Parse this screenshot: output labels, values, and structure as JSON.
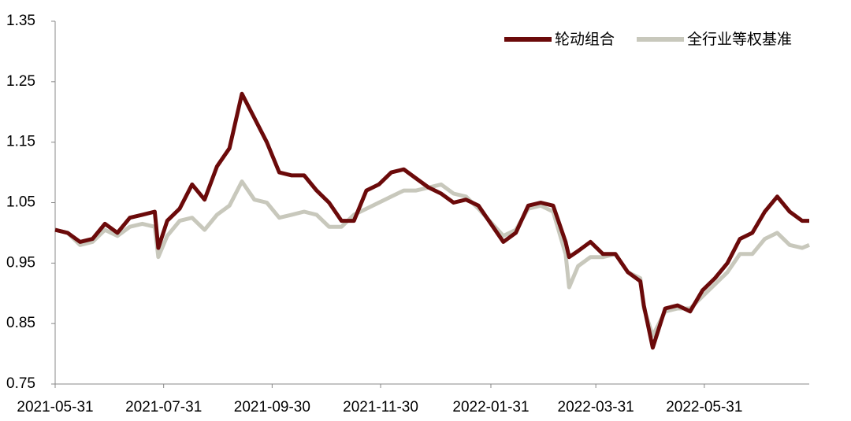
{
  "chart_data": {
    "type": "line",
    "x": [
      "2021-05-31",
      "2021-06-07",
      "2021-06-14",
      "2021-06-21",
      "2021-06-28",
      "2021-07-05",
      "2021-07-12",
      "2021-07-19",
      "2021-07-26",
      "2021-07-28",
      "2021-08-02",
      "2021-08-09",
      "2021-08-16",
      "2021-08-23",
      "2021-08-30",
      "2021-09-06",
      "2021-09-13",
      "2021-09-20",
      "2021-09-27",
      "2021-10-04",
      "2021-10-11",
      "2021-10-18",
      "2021-10-25",
      "2021-11-01",
      "2021-11-08",
      "2021-11-15",
      "2021-11-22",
      "2021-11-29",
      "2021-12-06",
      "2021-12-13",
      "2021-12-20",
      "2021-12-27",
      "2022-01-03",
      "2022-01-10",
      "2022-01-17",
      "2022-01-24",
      "2022-02-07",
      "2022-02-14",
      "2022-02-21",
      "2022-02-28",
      "2022-03-07",
      "2022-03-14",
      "2022-03-16",
      "2022-03-21",
      "2022-03-28",
      "2022-04-04",
      "2022-04-11",
      "2022-04-18",
      "2022-04-25",
      "2022-04-27",
      "2022-05-02",
      "2022-05-09",
      "2022-05-16",
      "2022-05-23",
      "2022-05-30",
      "2022-06-06",
      "2022-06-13",
      "2022-06-20",
      "2022-06-27",
      "2022-07-04",
      "2022-07-11",
      "2022-07-18",
      "2022-07-25",
      "2022-07-29"
    ],
    "series": [
      {
        "name": "轮动组合",
        "color": "#6b0a0a",
        "values": [
          1.005,
          1.0,
          0.985,
          0.99,
          1.015,
          1.0,
          1.025,
          1.03,
          1.035,
          0.975,
          1.02,
          1.04,
          1.08,
          1.055,
          1.11,
          1.14,
          1.23,
          1.19,
          1.15,
          1.1,
          1.095,
          1.095,
          1.07,
          1.05,
          1.02,
          1.02,
          1.07,
          1.08,
          1.1,
          1.105,
          1.09,
          1.075,
          1.065,
          1.05,
          1.055,
          1.045,
          0.985,
          1.0,
          1.045,
          1.05,
          1.045,
          0.985,
          0.96,
          0.97,
          0.985,
          0.965,
          0.965,
          0.935,
          0.92,
          0.88,
          0.81,
          0.875,
          0.88,
          0.87,
          0.905,
          0.925,
          0.95,
          0.99,
          1.0,
          1.035,
          1.06,
          1.035,
          1.02,
          1.02
        ]
      },
      {
        "name": "全行业等权基准",
        "color": "#c8c8bc",
        "values": [
          1.005,
          1.0,
          0.98,
          0.985,
          1.005,
          0.995,
          1.01,
          1.015,
          1.01,
          0.96,
          0.995,
          1.02,
          1.025,
          1.005,
          1.03,
          1.045,
          1.085,
          1.055,
          1.05,
          1.025,
          1.03,
          1.035,
          1.03,
          1.01,
          1.01,
          1.03,
          1.04,
          1.05,
          1.06,
          1.07,
          1.07,
          1.075,
          1.08,
          1.065,
          1.06,
          1.04,
          0.995,
          1.005,
          1.04,
          1.045,
          1.035,
          0.965,
          0.91,
          0.945,
          0.96,
          0.96,
          0.965,
          0.935,
          0.925,
          0.875,
          0.83,
          0.87,
          0.875,
          0.875,
          0.895,
          0.915,
          0.935,
          0.965,
          0.965,
          0.99,
          1.0,
          0.98,
          0.975,
          0.98
        ]
      }
    ],
    "xlim": [
      "2021-05-31",
      "2022-07-29"
    ],
    "xticks": [
      "2021-05-31",
      "2021-07-31",
      "2021-09-30",
      "2021-11-30",
      "2022-01-31",
      "2022-03-31",
      "2022-05-31"
    ],
    "ylim": [
      0.75,
      1.35
    ],
    "yticks": [
      0.75,
      0.85,
      0.95,
      1.05,
      1.15,
      1.25,
      1.35
    ],
    "legend": "upper-right"
  }
}
